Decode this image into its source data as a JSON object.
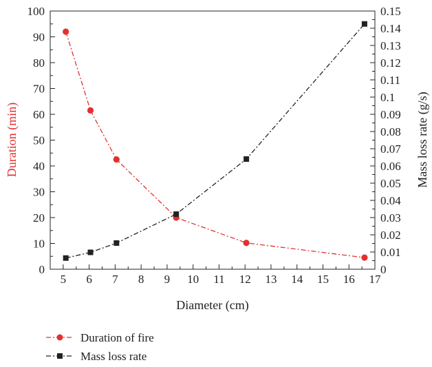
{
  "chart_data": {
    "type": "line",
    "xlabel": "Diameter (cm)",
    "ylabel_left": "Duration (min)",
    "ylabel_right": "Mass loss rate (g/s)",
    "xlim": [
      4.5,
      17
    ],
    "ylim_left": [
      0,
      100
    ],
    "ylim_right": [
      0,
      0.15
    ],
    "x_ticks": [
      "5",
      "6",
      "7",
      "8",
      "9",
      "10",
      "11",
      "12",
      "13",
      "14",
      "15",
      "16",
      "17"
    ],
    "y_left_ticks": [
      "0",
      "10",
      "20",
      "30",
      "40",
      "50",
      "60",
      "70",
      "80",
      "90",
      "100"
    ],
    "y_right_ticks": [
      "0",
      "0.01",
      "0.02",
      "0.03",
      "0.04",
      "0.05",
      "0.06",
      "0.07",
      "0.08",
      "0.09",
      "0.1",
      "0.11",
      "0.12",
      "0.13",
      "0.14",
      "0.15"
    ],
    "grid": false,
    "legend_position": "bottom-left, below plot",
    "series": [
      {
        "name": "Duration of fire",
        "axis": "left",
        "color": "#e3302f",
        "marker": "circle",
        "line_style": "dash-dot",
        "x": [
          5.1,
          6.05,
          7.05,
          9.35,
          12.05,
          16.6
        ],
        "y": [
          92,
          61.5,
          42.5,
          20,
          10.2,
          4.5
        ]
      },
      {
        "name": "Mass loss rate",
        "axis": "right",
        "color": "#222222",
        "marker": "square",
        "line_style": "dash-dot",
        "x": [
          5.1,
          6.05,
          7.05,
          9.35,
          12.05,
          16.6
        ],
        "y": [
          0.0065,
          0.0098,
          0.0152,
          0.032,
          0.064,
          0.1425
        ]
      }
    ]
  }
}
